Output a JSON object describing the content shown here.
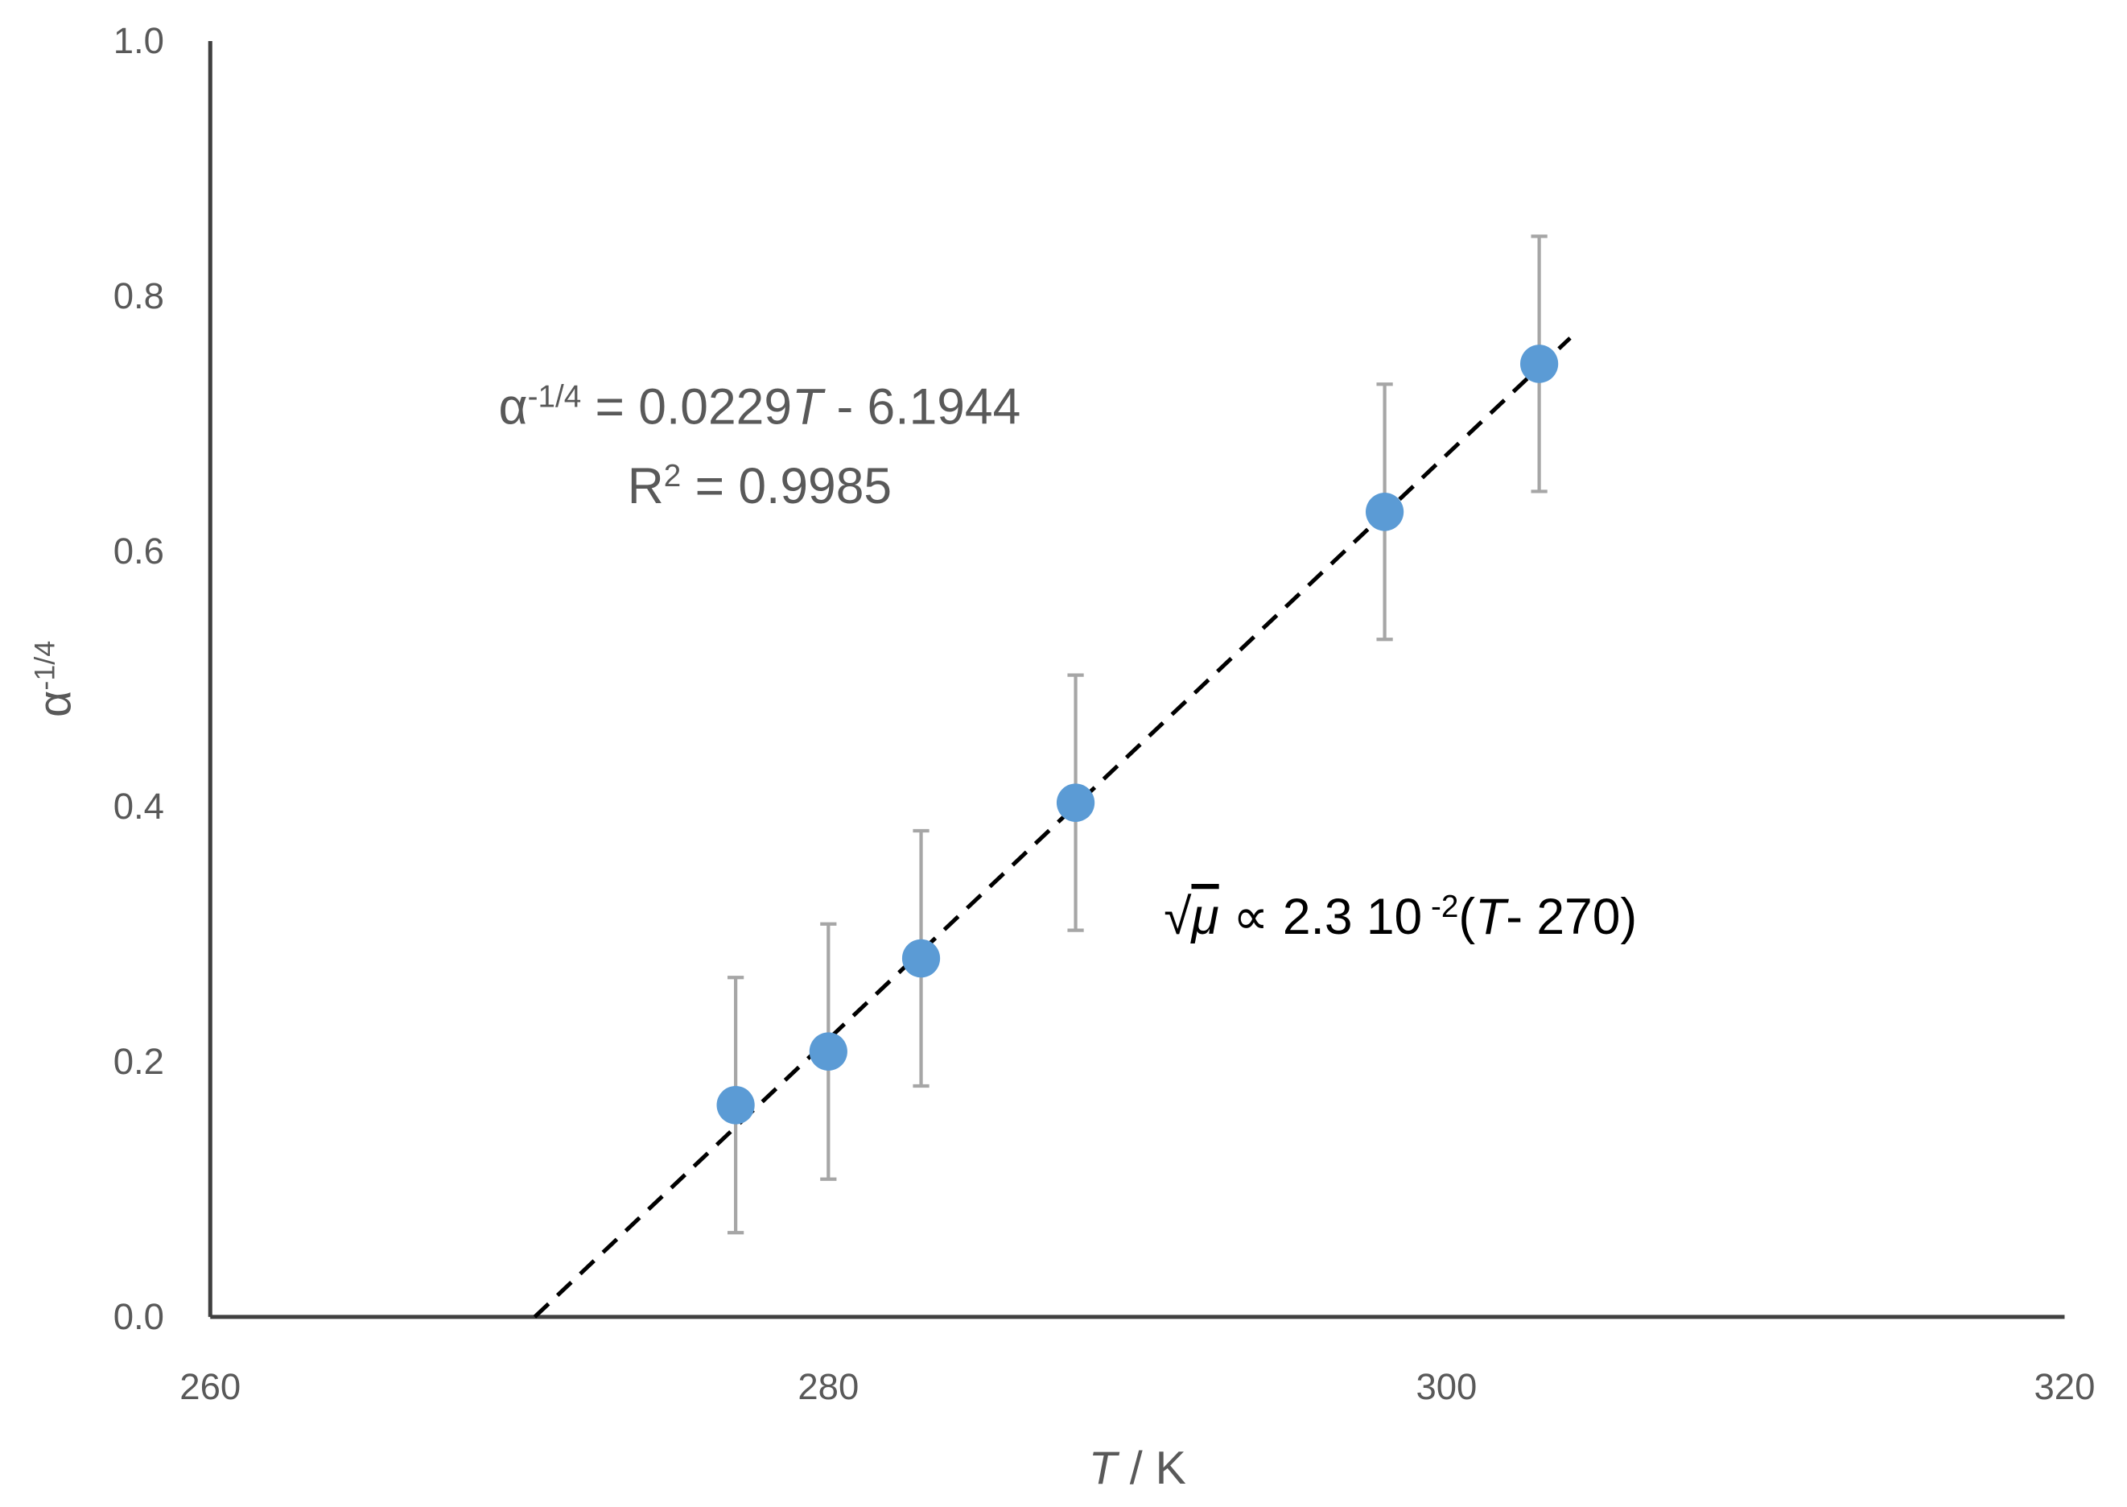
{
  "chart_data": {
    "type": "scatter",
    "x": [
      277,
      280,
      283,
      288,
      298,
      303
    ],
    "series": [
      {
        "color": "#5b9bd5",
        "values": [
          0.166,
          0.208,
          0.281,
          0.403,
          0.631,
          0.747
        ],
        "errors": [
          0.1,
          0.1,
          0.1,
          0.1,
          0.1,
          0.1
        ],
        "error_color": "#a6a6a6"
      }
    ],
    "trendline": {
      "slope": 0.0229,
      "intercept": -6.1944,
      "color": "#000000",
      "dashed": true
    },
    "xlim": [
      260,
      320
    ],
    "xticks": [
      260,
      280,
      300,
      320
    ],
    "ylim": [
      0,
      1
    ],
    "yticks": [
      {
        "value": 0,
        "label": "0.0"
      },
      0.2,
      0.4,
      0.6,
      0.8,
      {
        "value": 1,
        "label": "1.0"
      }
    ],
    "x_label": [
      "T",
      " / K"
    ],
    "y_label": [
      "α",
      "-1/4"
    ],
    "annotations": [
      [
        "α",
        "-1/4",
        " = 0.0229",
        "T",
        " - 6.1944"
      ],
      [
        "R",
        "2",
        " = 0.9985"
      ],
      [
        "√",
        "μ",
        " ∝ 2.3 10",
        " -2",
        "(",
        "T",
        "- 270)"
      ]
    ],
    "grid": false
  }
}
